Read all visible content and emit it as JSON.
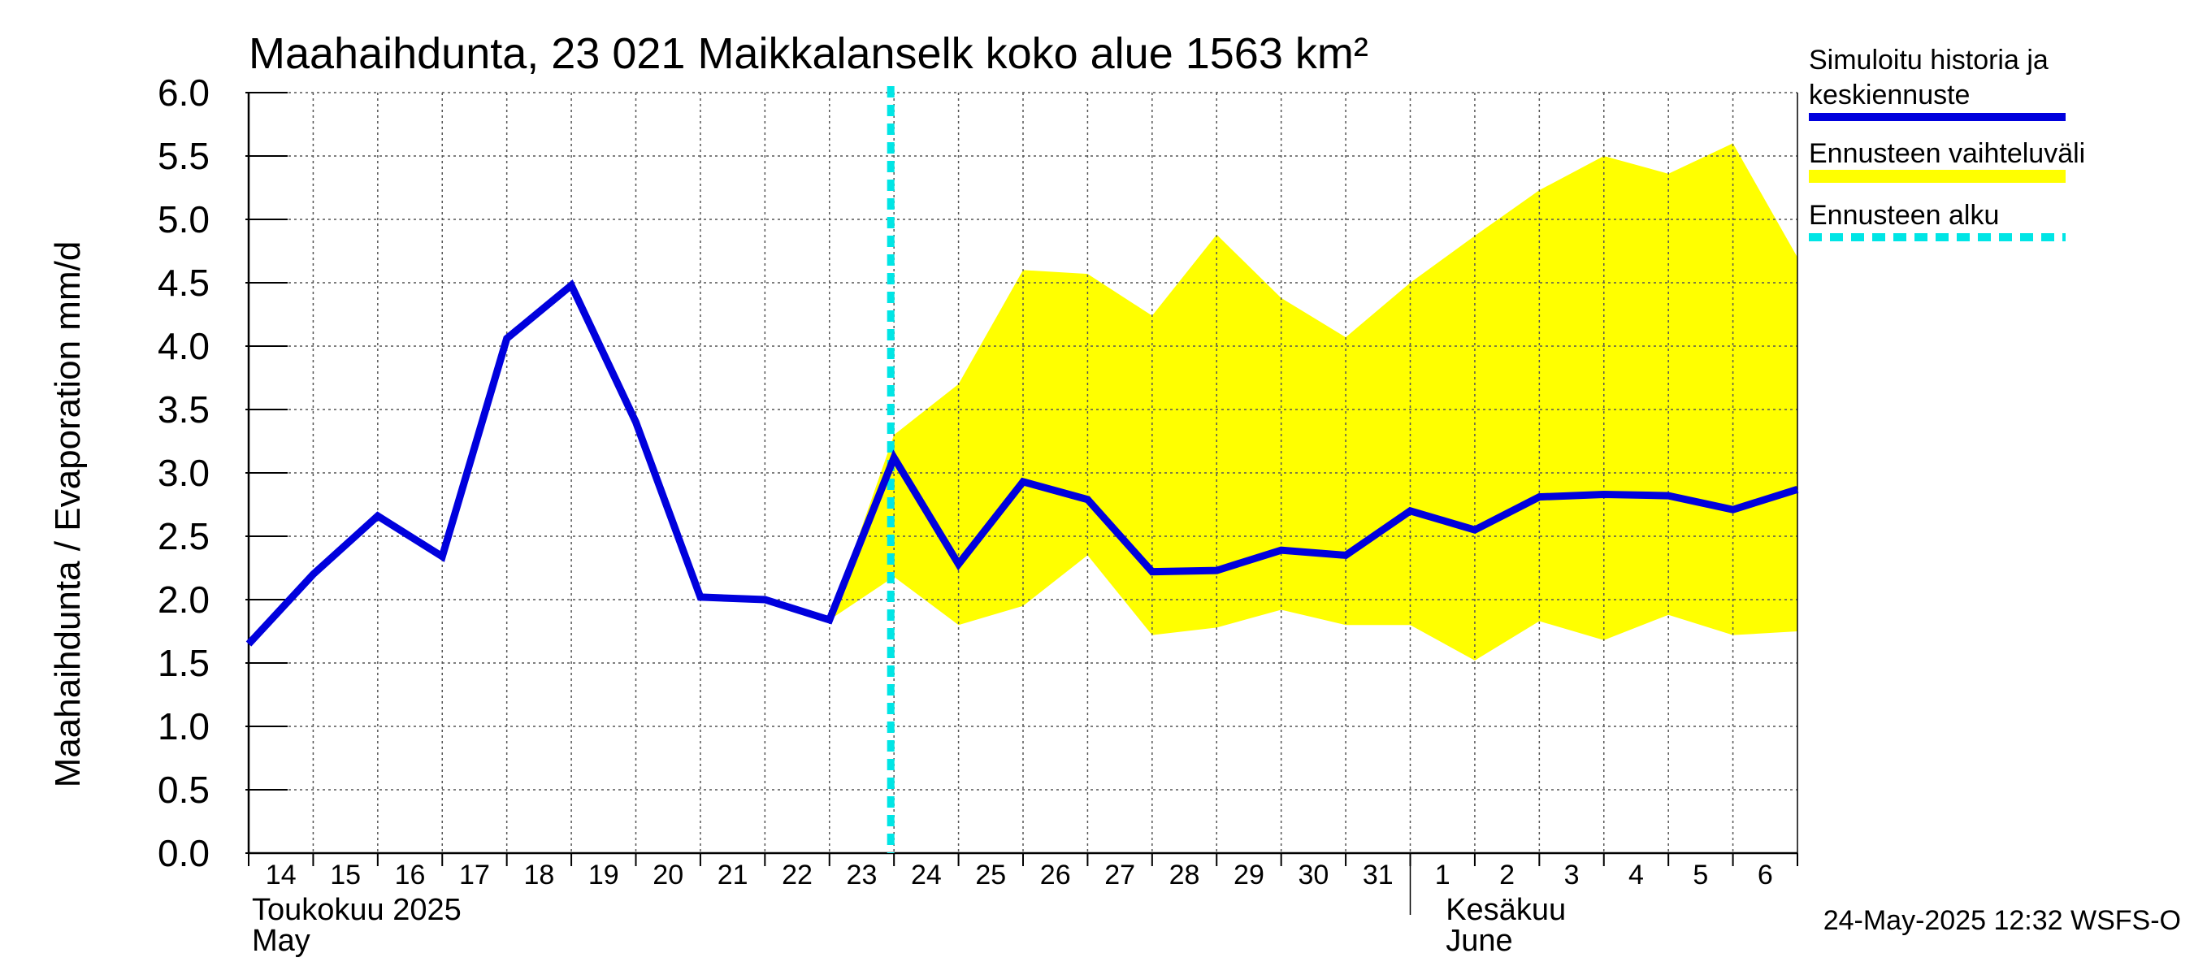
{
  "chart_data": {
    "type": "line",
    "title": "Maahaihdunta, 23 021 Maikkalanselk koko alue 1563 km²",
    "ylabel": "Maahaihdunta / Evaporation   mm/d",
    "ylim": [
      0,
      6
    ],
    "yticks": [
      "0.0",
      "0.5",
      "1.0",
      "1.5",
      "2.0",
      "2.5",
      "3.0",
      "3.5",
      "4.0",
      "4.5",
      "5.0",
      "5.5",
      "6.0"
    ],
    "x": [
      "2025-05-14",
      "2025-05-15",
      "2025-05-16",
      "2025-05-17",
      "2025-05-18",
      "2025-05-19",
      "2025-05-20",
      "2025-05-21",
      "2025-05-22",
      "2025-05-23",
      "2025-05-24",
      "2025-05-25",
      "2025-05-26",
      "2025-05-27",
      "2025-05-28",
      "2025-05-29",
      "2025-05-30",
      "2025-05-31",
      "2025-06-01",
      "2025-06-02",
      "2025-06-03",
      "2025-06-04",
      "2025-06-05",
      "2025-06-06",
      "2025-06-07"
    ],
    "xtick_labels": [
      "14",
      "15",
      "16",
      "17",
      "18",
      "19",
      "20",
      "21",
      "22",
      "23",
      "24",
      "25",
      "26",
      "27",
      "28",
      "29",
      "30",
      "31",
      "1",
      "2",
      "3",
      "4",
      "5",
      "6"
    ],
    "month_labels": [
      {
        "fi": "Toukokuu  2025",
        "en": "May"
      },
      {
        "fi": "Kesäkuu",
        "en": "June"
      }
    ],
    "grid": true,
    "legend_position": "right",
    "forecast_start": "2025-05-24",
    "series": [
      {
        "name": "Simuloitu historia ja keskiennuste",
        "color": "#0000dd",
        "values": [
          1.65,
          2.2,
          2.66,
          2.34,
          4.06,
          4.48,
          3.4,
          2.02,
          2.0,
          1.84,
          3.12,
          2.28,
          2.93,
          2.79,
          2.22,
          2.23,
          2.39,
          2.35,
          2.7,
          2.55,
          2.81,
          2.83,
          2.82,
          2.71,
          2.87
        ]
      },
      {
        "name": "Ennusteen vaihteluväli",
        "color": "#ffff00",
        "x_start_index": 9,
        "lower": [
          1.84,
          2.18,
          1.8,
          1.95,
          2.35,
          1.72,
          1.78,
          1.92,
          1.8,
          1.8,
          1.52,
          1.83,
          1.68,
          1.88,
          1.72,
          1.75
        ],
        "upper": [
          1.84,
          3.3,
          3.7,
          4.6,
          4.57,
          4.24,
          4.88,
          4.38,
          4.07,
          4.5,
          4.87,
          5.23,
          5.5,
          5.36,
          5.6,
          4.7
        ]
      },
      {
        "name": "Ennusteen alku",
        "color": "#00e5e5"
      }
    ],
    "footer": "24-May-2025 12:32 WSFS-O"
  }
}
